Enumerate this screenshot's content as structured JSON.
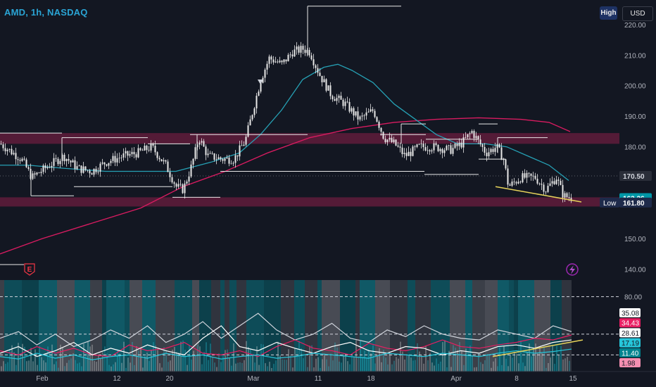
{
  "header": {
    "symbol_line": "AMD, 1h, NASDAQ",
    "high_button": "High",
    "currency_button": "USD"
  },
  "price_axis": {
    "ticks": [
      {
        "label": "220.00",
        "value": 220
      },
      {
        "label": "210.00",
        "value": 210
      },
      {
        "label": "200.00",
        "value": 200
      },
      {
        "label": "190.00",
        "value": 190
      },
      {
        "label": "180.00",
        "value": 180
      },
      {
        "label": "150.00",
        "value": 150
      },
      {
        "label": "140.00",
        "value": 140
      }
    ],
    "badges": [
      {
        "label": "170.50",
        "value": 170.5,
        "bg": "#2a2e39",
        "fg": "#d1d4dc"
      },
      {
        "label": "163.26",
        "value": 163.26,
        "bg": "#0097a7",
        "fg": "#ffffff"
      },
      {
        "label": "161.80",
        "value": 161.8,
        "bg": "#1e2a4a",
        "fg": "#ffffff",
        "prefix": "Low"
      }
    ]
  },
  "time_axis": {
    "labels": [
      "Feb",
      "12",
      "20",
      "Mar",
      "11",
      "18",
      "Apr",
      "8",
      "15"
    ]
  },
  "chart_markers": {
    "earnings_label": "E",
    "lightning_icon": "lightning-icon"
  },
  "oscillator": {
    "axis_label": "80.00",
    "axis_value": 80,
    "badges": [
      {
        "label": "35.08",
        "value": 35.08,
        "bg": "#ffffff",
        "fg": "#131722"
      },
      {
        "label": "34.43",
        "value": 34.43,
        "bg": "#e91e63",
        "fg": "#ffffff"
      },
      {
        "label": "28.61",
        "value": 28.61,
        "bg": "#ffffff",
        "fg": "#131722"
      },
      {
        "label": "17.19",
        "value": 17.19,
        "bg": "#26c6da",
        "fg": "#131722"
      },
      {
        "label": "11.40",
        "value": 11.4,
        "bg": "#00838f",
        "fg": "#ffffff"
      },
      {
        "label": "1.98",
        "value": 1.98,
        "bg": "#f48fb1",
        "fg": "#131722"
      }
    ]
  },
  "colors": {
    "background": "#131722",
    "candle": "#e8e8e8",
    "ma_fast": "#26a0b4",
    "ma_slow": "#d81b60",
    "zone": "#6b1e3f",
    "trendline": "#e6d35a",
    "accent": "#2aa4d4"
  },
  "chart_data": {
    "type": "candlestick",
    "xlabels": [
      "Feb",
      "12",
      "20",
      "Mar",
      "11",
      "18",
      "Apr",
      "8",
      "15"
    ],
    "ylim": [
      136,
      228
    ],
    "close_path": [
      [
        0,
        181
      ],
      [
        30,
        176
      ],
      [
        45,
        170
      ],
      [
        70,
        174
      ],
      [
        90,
        177
      ],
      [
        110,
        173
      ],
      [
        130,
        172
      ],
      [
        150,
        175
      ],
      [
        175,
        177
      ],
      [
        195,
        178
      ],
      [
        215,
        180
      ],
      [
        235,
        174
      ],
      [
        250,
        167
      ],
      [
        260,
        166
      ],
      [
        272,
        174
      ],
      [
        282,
        183
      ],
      [
        295,
        177
      ],
      [
        315,
        176
      ],
      [
        332,
        176
      ],
      [
        348,
        182
      ],
      [
        360,
        193
      ],
      [
        370,
        202
      ],
      [
        382,
        209
      ],
      [
        400,
        207
      ],
      [
        415,
        211
      ],
      [
        430,
        212
      ],
      [
        440,
        211
      ],
      [
        447,
        207
      ],
      [
        455,
        203
      ],
      [
        470,
        197
      ],
      [
        490,
        194
      ],
      [
        510,
        189
      ],
      [
        530,
        192
      ],
      [
        545,
        183
      ],
      [
        560,
        181
      ],
      [
        575,
        177
      ],
      [
        595,
        180
      ],
      [
        615,
        180
      ],
      [
        640,
        179
      ],
      [
        655,
        181
      ],
      [
        670,
        185
      ],
      [
        690,
        178
      ],
      [
        705,
        180
      ],
      [
        715,
        176
      ],
      [
        722,
        167
      ],
      [
        740,
        170
      ],
      [
        760,
        170
      ],
      [
        775,
        166
      ],
      [
        790,
        170
      ],
      [
        800,
        164
      ],
      [
        812,
        163.3
      ]
    ],
    "ma_fast": [
      [
        0,
        174
      ],
      [
        40,
        174
      ],
      [
        90,
        173
      ],
      [
        150,
        172
      ],
      [
        200,
        172
      ],
      [
        250,
        172
      ],
      [
        300,
        175
      ],
      [
        340,
        178
      ],
      [
        370,
        184
      ],
      [
        400,
        192
      ],
      [
        430,
        202
      ],
      [
        460,
        206
      ],
      [
        480,
        207
      ],
      [
        500,
        205
      ],
      [
        530,
        201
      ],
      [
        560,
        194
      ],
      [
        590,
        189
      ],
      [
        620,
        184
      ],
      [
        650,
        181
      ],
      [
        690,
        181
      ],
      [
        720,
        180
      ],
      [
        750,
        177
      ],
      [
        780,
        174
      ],
      [
        808,
        169
      ]
    ],
    "ma_slow": [
      [
        0,
        145
      ],
      [
        60,
        150
      ],
      [
        130,
        155
      ],
      [
        200,
        160
      ],
      [
        260,
        167
      ],
      [
        320,
        172
      ],
      [
        380,
        178
      ],
      [
        440,
        183
      ],
      [
        500,
        186
      ],
      [
        560,
        188
      ],
      [
        620,
        189
      ],
      [
        680,
        189.5
      ],
      [
        740,
        189
      ],
      [
        780,
        188
      ],
      [
        810,
        185
      ]
    ],
    "zones": [
      {
        "top": 184.5,
        "bottom": 181
      },
      {
        "top": 163.5,
        "bottom": 160.5
      }
    ],
    "levels": [
      {
        "x1": 0,
        "x2": 88,
        "y": 184.5
      },
      {
        "x1": 88,
        "x2": 210,
        "y": 183
      },
      {
        "x1": 210,
        "x2": 270,
        "y": 181
      },
      {
        "x1": 270,
        "x2": 437,
        "y": 184
      },
      {
        "x1": 437,
        "x2": 570,
        "y": 226
      },
      {
        "x1": 540,
        "x2": 605,
        "y": 184
      },
      {
        "x1": 570,
        "x2": 605,
        "y": 187.5
      },
      {
        "x1": 605,
        "x2": 680,
        "y": 182.5
      },
      {
        "x1": 680,
        "x2": 707,
        "y": 187.5
      },
      {
        "x1": 707,
        "x2": 778,
        "y": 183
      },
      {
        "x1": 44,
        "x2": 105,
        "y": 164
      },
      {
        "x1": 105,
        "x2": 180,
        "y": 167
      },
      {
        "x1": 180,
        "x2": 245,
        "y": 167
      },
      {
        "x1": 245,
        "x2": 313,
        "y": 163.5
      },
      {
        "x1": 313,
        "x2": 508,
        "y": 172
      },
      {
        "x1": 508,
        "x2": 603,
        "y": 172
      },
      {
        "x1": 603,
        "x2": 680,
        "y": 171
      },
      {
        "x1": 680,
        "x2": 718,
        "y": 176
      }
    ],
    "trendline": {
      "x1": 704,
      "y1": 167,
      "x2": 826,
      "y2": 162
    },
    "osc_ylim": [
      -10,
      100
    ],
    "osc_lines": [
      {
        "name": "",
        "color": "#d0d4dc",
        "values": [
          30,
          38,
          22,
          35,
          20,
          28,
          40,
          30,
          45,
          25,
          35,
          50,
          30,
          45,
          60,
          40,
          28,
          35,
          48,
          30,
          25,
          40,
          32,
          45,
          35,
          30,
          28,
          40,
          35,
          30,
          45,
          38
        ]
      },
      {
        "name": "",
        "color": "#e91e63",
        "values": [
          15,
          10,
          20,
          12,
          18,
          10,
          8,
          22,
          15,
          18,
          25,
          12,
          10,
          15,
          8,
          20,
          28,
          18,
          15,
          10,
          24,
          18,
          15,
          20,
          28,
          20,
          18,
          22,
          25,
          30,
          28,
          34
        ]
      },
      {
        "name": "",
        "color": "#ffffff",
        "values": [
          12,
          20,
          8,
          15,
          25,
          10,
          18,
          12,
          22,
          15,
          10,
          30,
          45,
          20,
          15,
          25,
          18,
          12,
          20,
          25,
          15,
          12,
          20,
          18,
          10,
          15,
          12,
          20,
          22,
          18,
          25,
          28
        ]
      },
      {
        "name": "",
        "color": "#26c6da",
        "values": [
          8,
          5,
          12,
          6,
          10,
          4,
          8,
          10,
          6,
          12,
          8,
          10,
          5,
          8,
          10,
          6,
          8,
          12,
          10,
          8,
          6,
          12,
          10,
          8,
          12,
          10,
          8,
          12,
          15,
          12,
          14,
          17
        ]
      }
    ],
    "osc_trend": {
      "x1": 700,
      "y1": 8,
      "x2": 828,
      "y2": 28
    }
  }
}
